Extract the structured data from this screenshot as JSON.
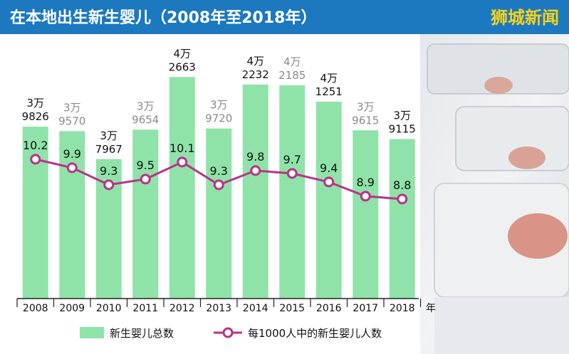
{
  "header": {
    "title": "在本地出生新生婴儿（2008年至2018年）",
    "source": "狮城新闻"
  },
  "colors": {
    "bar": "#8fe3a8",
    "line": "#b8338a",
    "header_bg": "#1c79c0",
    "source_text": "#f6d21a",
    "light_label": "#8a8a8a",
    "dark_label": "#111111"
  },
  "chart_data": {
    "type": "bar",
    "title": "在本地出生新生婴儿（2008年至2018年）",
    "categories": [
      "2008",
      "2009",
      "2010",
      "2011",
      "2012",
      "2013",
      "2014",
      "2015",
      "2016",
      "2017",
      "2018"
    ],
    "x_unit": "年",
    "bar_label_top": [
      "3万",
      "3万",
      "3万",
      "3万",
      "4万",
      "3万",
      "4万",
      "4万",
      "4万",
      "3万",
      "3万"
    ],
    "bar_label_bottom": [
      "9826",
      "9570",
      "7967",
      "9654",
      "2663",
      "9720",
      "2232",
      "2185",
      "1251",
      "9615",
      "9115"
    ],
    "bar_label_shade": [
      "dark",
      "light",
      "dark",
      "light",
      "dark",
      "light",
      "dark",
      "light",
      "dark",
      "light",
      "dark"
    ],
    "series": [
      {
        "name": "新生婴儿总数",
        "type": "bar",
        "values": [
          39826,
          39570,
          37967,
          39654,
          42663,
          39720,
          42232,
          42185,
          41251,
          39615,
          39115
        ]
      },
      {
        "name": "每1000人中的新生婴儿人数",
        "type": "line",
        "values": [
          10.2,
          9.9,
          9.3,
          9.5,
          10.1,
          9.3,
          9.8,
          9.7,
          9.4,
          8.9,
          8.8
        ],
        "labels": [
          "10.2",
          "9.9",
          "9.3",
          "9.5",
          "10.1",
          "9.3",
          "9.8",
          "9.7",
          "9.4",
          "8.9",
          "8.8"
        ]
      }
    ],
    "legend_position": "bottom-left",
    "grid": false
  }
}
